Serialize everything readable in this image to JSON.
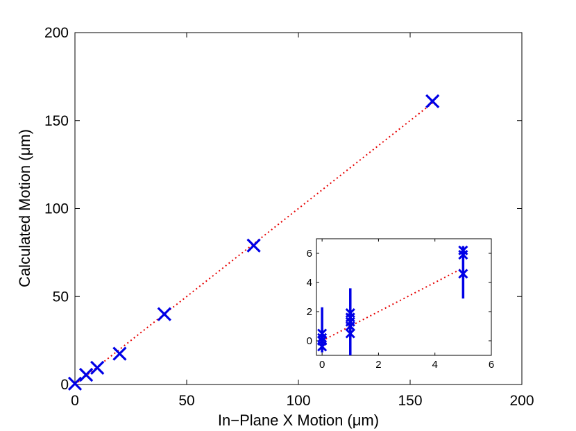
{
  "chart_data": [
    {
      "type": "scatter",
      "title": "",
      "xlabel": "In−Plane X Motion (μm)",
      "ylabel": "Calculated Motion (μm)",
      "xlim": [
        0,
        200
      ],
      "ylim": [
        0,
        200
      ],
      "xticks": [
        "0",
        "50",
        "100",
        "150",
        "200"
      ],
      "yticks": [
        "0",
        "50",
        "100",
        "150",
        "200"
      ],
      "grid": false,
      "colors": {
        "marker": "#0000e6",
        "fit_line": "#e60000"
      },
      "series": [
        {
          "marker": "x",
          "x": [
            0,
            5,
            10,
            20,
            40,
            80,
            160
          ],
          "y": [
            0.5,
            5.5,
            9.5,
            17.5,
            40,
            79,
            161
          ]
        }
      ],
      "fit_line": {
        "style": "dotted",
        "x": [
          0,
          160
        ],
        "y": [
          0,
          160
        ]
      }
    },
    {
      "type": "scatter",
      "title": "",
      "xlabel": "",
      "ylabel": "",
      "xlim": [
        -0.2,
        6
      ],
      "ylim": [
        -1,
        7
      ],
      "xticks": [
        "0",
        "2",
        "4",
        "6"
      ],
      "yticks": [
        "0",
        "2",
        "4",
        "6"
      ],
      "grid": false,
      "series": [
        {
          "marker": "x",
          "points": [
            {
              "x": 0,
              "y": -0.4
            },
            {
              "x": 0,
              "y": 0
            },
            {
              "x": 0,
              "y": 0.2
            },
            {
              "x": 0,
              "y": 0.5
            },
            {
              "x": 1,
              "y": 0.5
            },
            {
              "x": 1,
              "y": 1.0
            },
            {
              "x": 1,
              "y": 1.3
            },
            {
              "x": 1,
              "y": 1.6
            },
            {
              "x": 1,
              "y": 1.9
            },
            {
              "x": 5,
              "y": 4.6
            },
            {
              "x": 5,
              "y": 5.9
            },
            {
              "x": 5,
              "y": 6.2
            }
          ]
        }
      ],
      "error_bars": [
        {
          "x": 0,
          "low": -0.8,
          "high": 2.3
        },
        {
          "x": 1,
          "low": -1.0,
          "high": 3.6
        },
        {
          "x": 5,
          "low": 2.9,
          "high": 6.5
        }
      ],
      "fit_line": {
        "style": "dotted",
        "x": [
          0,
          5
        ],
        "y": [
          0,
          5
        ]
      }
    }
  ]
}
